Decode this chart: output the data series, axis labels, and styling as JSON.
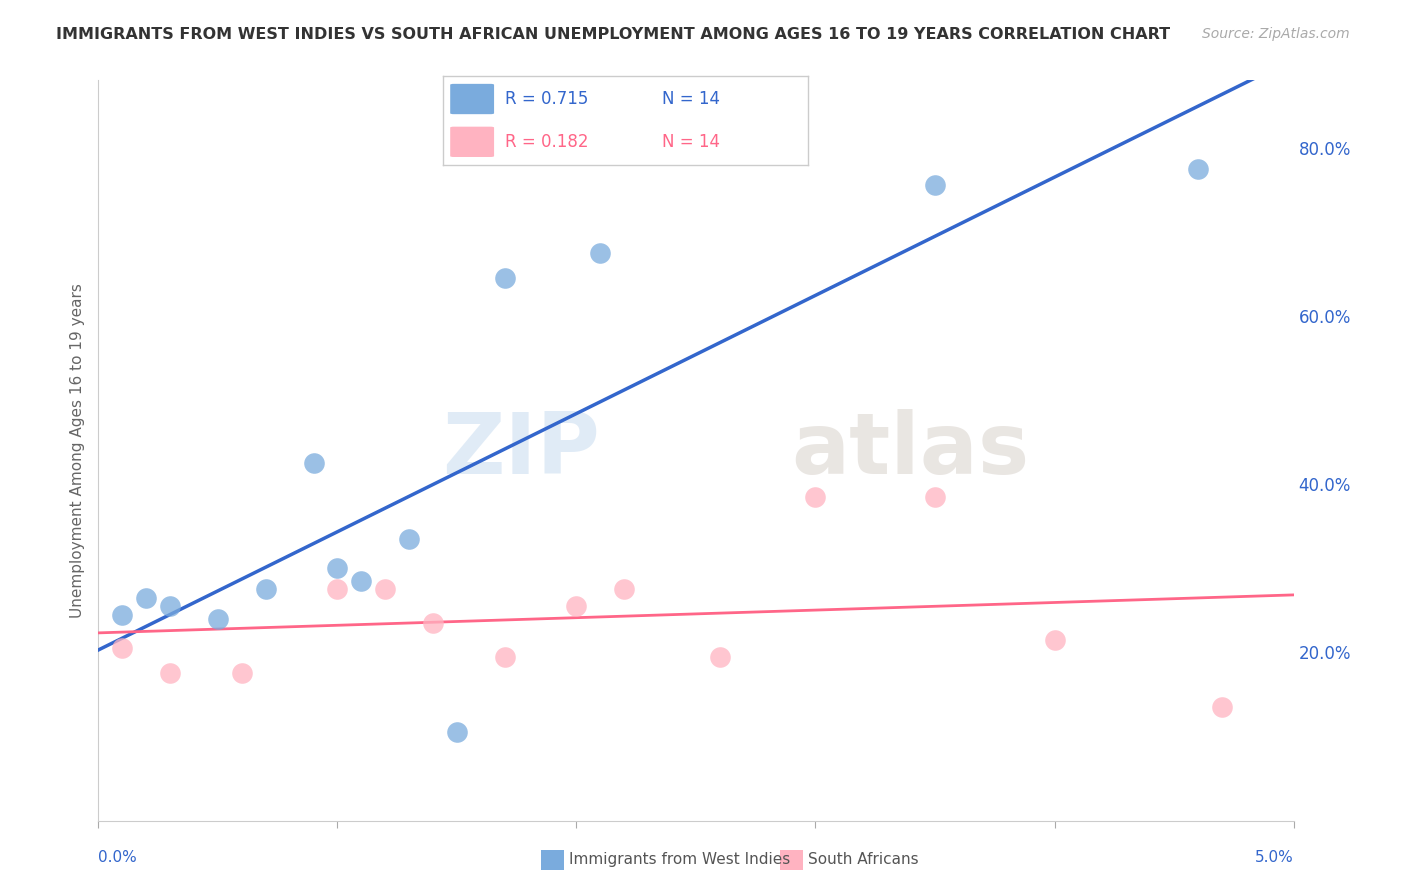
{
  "title": "IMMIGRANTS FROM WEST INDIES VS SOUTH AFRICAN UNEMPLOYMENT AMONG AGES 16 TO 19 YEARS CORRELATION CHART",
  "source": "Source: ZipAtlas.com",
  "ylabel": "Unemployment Among Ages 16 to 19 years",
  "legend_label1": "Immigrants from West Indies",
  "legend_label2": "South Africans",
  "legend_r1": "R = 0.715",
  "legend_n1": "N = 14",
  "legend_r2": "R = 0.182",
  "legend_n2": "N = 14",
  "blue_color": "#7AABDD",
  "pink_color": "#FFB3C1",
  "blue_line_color": "#3366CC",
  "pink_line_color": "#FF6688",
  "right_ytick_color": "#3366CC",
  "watermark_zip": "ZIP",
  "watermark_atlas": "atlas",
  "blue_x": [
    0.001,
    0.002,
    0.003,
    0.005,
    0.007,
    0.009,
    0.01,
    0.011,
    0.013,
    0.015,
    0.017,
    0.021,
    0.035,
    0.046
  ],
  "blue_y": [
    0.245,
    0.265,
    0.255,
    0.24,
    0.275,
    0.425,
    0.3,
    0.285,
    0.335,
    0.105,
    0.645,
    0.675,
    0.755,
    0.775
  ],
  "pink_x": [
    0.001,
    0.003,
    0.006,
    0.01,
    0.012,
    0.014,
    0.017,
    0.02,
    0.022,
    0.026,
    0.03,
    0.035,
    0.04,
    0.047
  ],
  "pink_y": [
    0.205,
    0.175,
    0.175,
    0.275,
    0.275,
    0.235,
    0.195,
    0.255,
    0.275,
    0.195,
    0.385,
    0.385,
    0.215,
    0.135
  ],
  "xmin": 0.0,
  "xmax": 0.05,
  "ymin": 0.0,
  "ymax": 0.88,
  "yticks_right": [
    0.2,
    0.4,
    0.6,
    0.8
  ],
  "ytick_labels_right": [
    "20.0%",
    "40.0%",
    "60.0%",
    "80.0%"
  ]
}
